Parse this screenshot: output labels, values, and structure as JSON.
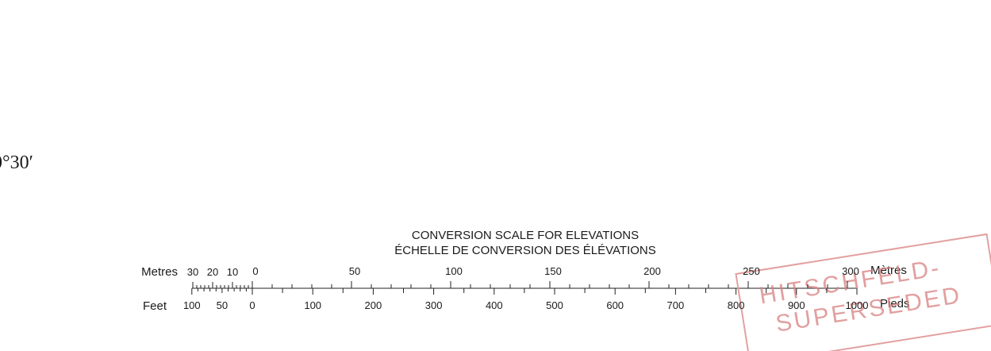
{
  "corner_label": "0°30′",
  "title": [
    "CONVERSION SCALE FOR ELEVATIONS",
    "ÉCHELLE DE CONVERSION DES ÉLÉVATIONS"
  ],
  "metres": {
    "label": "Metres",
    "label_fr": "Mètres",
    "left_labels": [
      30,
      20,
      10
    ],
    "labels": [
      0,
      50,
      100,
      150,
      200,
      250,
      300
    ]
  },
  "feet": {
    "label": "Feet",
    "label_fr": "Pieds",
    "left_labels": [
      100,
      50
    ],
    "labels": [
      0,
      100,
      200,
      300,
      400,
      500,
      600,
      700,
      800,
      900,
      1000
    ]
  },
  "stamp": [
    "HITSCHFELD-",
    "SUPERSEDED"
  ]
}
